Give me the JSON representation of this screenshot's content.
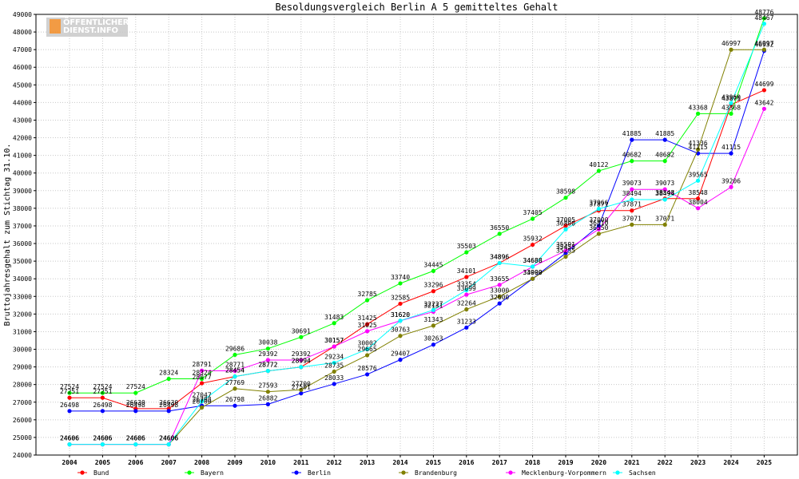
{
  "logo": {
    "line1": "ÖFFENTLICHER",
    "line2": "DIENST.INFO"
  },
  "chart_data": {
    "type": "line",
    "title": "Besoldungsvergleich Berlin A 5 gemitteltes Gehalt",
    "xlabel": "",
    "ylabel": "Bruttojahresgehalt zum Stichtag 31.10.",
    "ylim": [
      24000,
      49000
    ],
    "y_ticks": [
      24000,
      25000,
      26000,
      27000,
      28000,
      29000,
      30000,
      31000,
      32000,
      33000,
      34000,
      35000,
      36000,
      37000,
      38000,
      39000,
      40000,
      41000,
      42000,
      43000,
      44000,
      45000,
      46000,
      47000,
      48000,
      49000
    ],
    "grid": true,
    "legend": "bottom",
    "x": [
      "2004",
      "2005",
      "2006",
      "2007",
      "2008",
      "2009",
      "2010",
      "2011",
      "2012",
      "2013",
      "2014",
      "2015",
      "2016",
      "2017",
      "2018",
      "2019",
      "2020",
      "2021",
      "2022",
      "2023",
      "2024",
      "2025"
    ],
    "series": [
      {
        "name": "Bund",
        "color": "#ff0000",
        "values": [
          27251,
          27251,
          26630,
          26630,
          28077,
          28454,
          28772,
          28994,
          30157,
          31425,
          32585,
          33296,
          34101,
          34896,
          35932,
          37005,
          37871,
          37871,
          38548,
          38548,
          43875,
          44699
        ]
      },
      {
        "name": "Bayern",
        "color": "#00ff00",
        "values": [
          27524,
          27524,
          27524,
          28324,
          28324,
          29686,
          30038,
          30691,
          31483,
          32785,
          33740,
          34445,
          35503,
          36550,
          37405,
          38598,
          40122,
          40682,
          40682,
          43368,
          43368,
          48776
        ]
      },
      {
        "name": "Berlin",
        "color": "#0000ff",
        "values": [
          26498,
          26498,
          26498,
          26498,
          26798,
          26798,
          26882,
          27501,
          28033,
          28576,
          29407,
          30263,
          31233,
          32600,
          34000,
          35455,
          37000,
          41885,
          41885,
          41115,
          41115,
          46932
        ]
      },
      {
        "name": "Brandenburg",
        "color": "#808000",
        "values": [
          24606,
          24606,
          24606,
          24606,
          26700,
          27769,
          27593,
          27700,
          28735,
          29665,
          30763,
          31343,
          32264,
          33000,
          33999,
          35255,
          36550,
          37071,
          37071,
          41336,
          46997,
          46997
        ]
      },
      {
        "name": "Mecklenburg-Vorpommern",
        "color": "#ff00ff",
        "values": [
          24606,
          24606,
          24606,
          24606,
          28791,
          28771,
          29392,
          29392,
          30157,
          31025,
          31620,
          32131,
          33099,
          33655,
          34688,
          35591,
          36810,
          39073,
          39073,
          38004,
          39206,
          43642
        ]
      },
      {
        "name": "Sachsen",
        "color": "#00ffff",
        "values": [
          24606,
          24606,
          24606,
          24606,
          27047,
          28454,
          28772,
          28994,
          29234,
          30002,
          31620,
          32227,
          33354,
          34896,
          34688,
          36800,
          37966,
          38494,
          38494,
          39565,
          43960,
          48467
        ]
      }
    ]
  }
}
